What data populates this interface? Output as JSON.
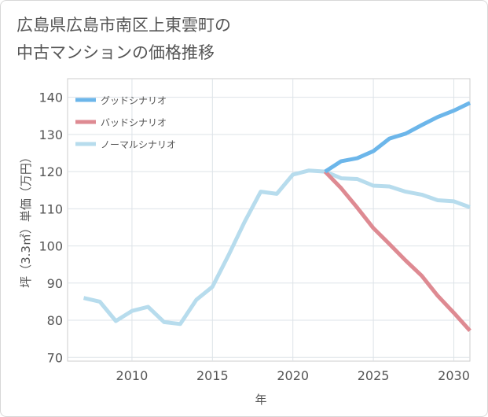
{
  "title": {
    "line1": "広島県広島市南区上東雲町の",
    "line2": "中古マンションの価格推移"
  },
  "chart_data": {
    "type": "line",
    "title": "広島県広島市南区上東雲町の中古マンションの価格推移",
    "xlabel": "年",
    "ylabel": "坪（3.3㎡）単価（万円）",
    "xlim": [
      2006,
      2031
    ],
    "ylim": [
      69,
      145
    ],
    "x_ticks": [
      2010,
      2015,
      2020,
      2025,
      2030
    ],
    "y_ticks": [
      70,
      80,
      90,
      100,
      110,
      120,
      130,
      140
    ],
    "grid": true,
    "legend_position": "top-left",
    "series": [
      {
        "name": "グッドシナリオ",
        "color": "#6cb6ea",
        "x": [
          2022,
          2023,
          2024,
          2025,
          2026,
          2027,
          2028,
          2029,
          2030,
          2031
        ],
        "values": [
          120,
          122.8,
          123.6,
          125.5,
          128.9,
          130.2,
          132.5,
          134.7,
          136.4,
          138.5
        ]
      },
      {
        "name": "バッドシナリオ",
        "color": "#de8a92",
        "x": [
          2022,
          2023,
          2024,
          2025,
          2026,
          2027,
          2028,
          2029,
          2030,
          2031
        ],
        "values": [
          120,
          115.5,
          110.3,
          104.8,
          100.5,
          96.1,
          92.0,
          86.6,
          82.0,
          77.2
        ]
      },
      {
        "name": "ノーマルシナリオ",
        "color": "#b7dced",
        "x": [
          2007,
          2008,
          2009,
          2010,
          2011,
          2012,
          2013,
          2014,
          2015,
          2016,
          2017,
          2018,
          2019,
          2020,
          2021,
          2022,
          2023,
          2024,
          2025,
          2026,
          2027,
          2028,
          2029,
          2030,
          2031
        ],
        "values": [
          86.0,
          85.0,
          79.8,
          82.5,
          83.6,
          79.5,
          79.0,
          85.5,
          89.0,
          97.5,
          106.5,
          114.6,
          114.0,
          119.2,
          120.3,
          120,
          118.2,
          118.0,
          116.2,
          116.0,
          114.6,
          113.8,
          112.3,
          112.0,
          110.4
        ]
      }
    ]
  }
}
